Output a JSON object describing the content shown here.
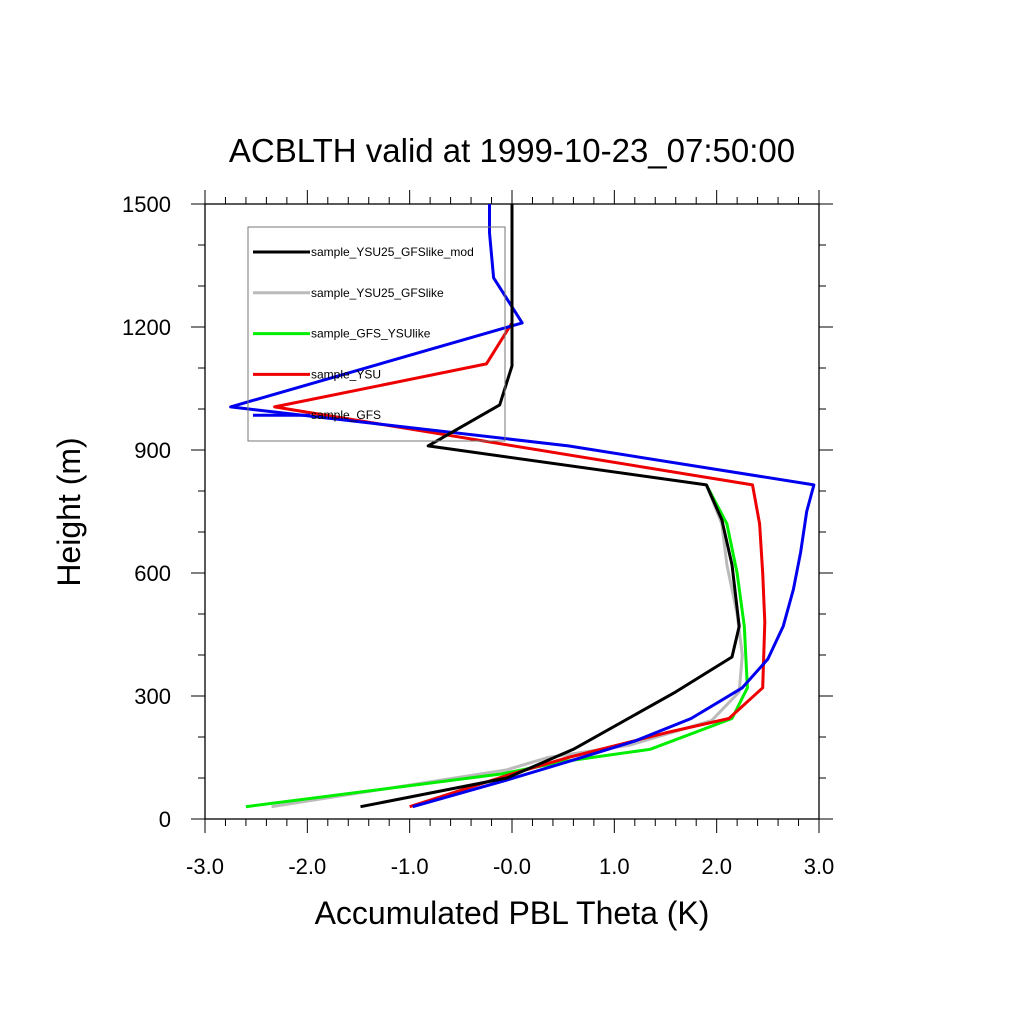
{
  "chart_data": {
    "type": "line",
    "title": "ACBLTH valid at 1999-10-23_07:50:00",
    "xlabel": "Accumulated PBL Theta (K)",
    "ylabel": "Height (m)",
    "xlim": [
      -3.0,
      3.0
    ],
    "ylim": [
      0,
      1500
    ],
    "xticks": [
      -3.0,
      -2.0,
      -1.0,
      0.0,
      1.0,
      2.0,
      3.0
    ],
    "xtick_labels": [
      "-3.0",
      "-2.0",
      "-1.0",
      "-0.0",
      "1.0",
      "2.0",
      "3.0"
    ],
    "yticks": [
      0,
      300,
      600,
      900,
      1200,
      1500
    ],
    "ytick_labels": [
      "0",
      "300",
      "600",
      "900",
      "1200",
      "1500"
    ],
    "grid": false,
    "legend_position": "top-left",
    "series": [
      {
        "name": "sample_YSU25_GFSlike_mod",
        "color": "#000000",
        "points": [
          [
            -1.48,
            30
          ],
          [
            -0.05,
            100
          ],
          [
            0.6,
            170
          ],
          [
            1.6,
            310
          ],
          [
            2.15,
            395
          ],
          [
            2.22,
            470
          ],
          [
            2.15,
            620
          ],
          [
            2.05,
            730
          ],
          [
            1.9,
            815
          ],
          [
            -0.82,
            910
          ],
          [
            -0.12,
            1010
          ],
          [
            0.0,
            1105
          ],
          [
            0.0,
            1200
          ],
          [
            0.0,
            1500
          ]
        ]
      },
      {
        "name": "sample_YSU25_GFSlike",
        "color": "#bbbbbb",
        "points": [
          [
            -2.35,
            30
          ],
          [
            -0.05,
            120
          ],
          [
            0.35,
            150
          ],
          [
            1.15,
            180
          ],
          [
            1.95,
            240
          ],
          [
            2.22,
            310
          ],
          [
            2.25,
            400
          ],
          [
            2.2,
            500
          ],
          [
            2.1,
            620
          ],
          [
            2.05,
            720
          ],
          [
            1.9,
            815
          ]
        ]
      },
      {
        "name": "sample_GFS_YSUlike",
        "color": "#00ee00",
        "points": [
          [
            -2.6,
            30
          ],
          [
            -0.1,
            110
          ],
          [
            0.5,
            140
          ],
          [
            1.35,
            170
          ],
          [
            2.15,
            245
          ],
          [
            2.3,
            320
          ],
          [
            2.27,
            470
          ],
          [
            2.2,
            600
          ],
          [
            2.1,
            720
          ],
          [
            1.9,
            815
          ]
        ]
      },
      {
        "name": "sample_YSU",
        "color": "#ee0000",
        "points": [
          [
            -1.0,
            30
          ],
          [
            0.0,
            110
          ],
          [
            0.55,
            150
          ],
          [
            1.5,
            210
          ],
          [
            2.12,
            245
          ],
          [
            2.45,
            320
          ],
          [
            2.47,
            480
          ],
          [
            2.45,
            600
          ],
          [
            2.42,
            720
          ],
          [
            2.35,
            815
          ],
          [
            -2.32,
            1005
          ],
          [
            -0.25,
            1110
          ],
          [
            0.0,
            1210
          ]
        ]
      },
      {
        "name": "sample_GFS",
        "color": "#0000ee",
        "points": [
          [
            -0.97,
            30
          ],
          [
            -0.05,
            95
          ],
          [
            0.55,
            140
          ],
          [
            1.2,
            190
          ],
          [
            1.75,
            245
          ],
          [
            2.25,
            320
          ],
          [
            2.5,
            390
          ],
          [
            2.65,
            470
          ],
          [
            2.75,
            560
          ],
          [
            2.82,
            650
          ],
          [
            2.88,
            750
          ],
          [
            2.95,
            815
          ],
          [
            0.55,
            910
          ],
          [
            -2.75,
            1005
          ],
          [
            0.1,
            1210
          ],
          [
            -0.18,
            1320
          ],
          [
            -0.22,
            1430
          ],
          [
            -0.22,
            1500
          ]
        ]
      }
    ]
  }
}
